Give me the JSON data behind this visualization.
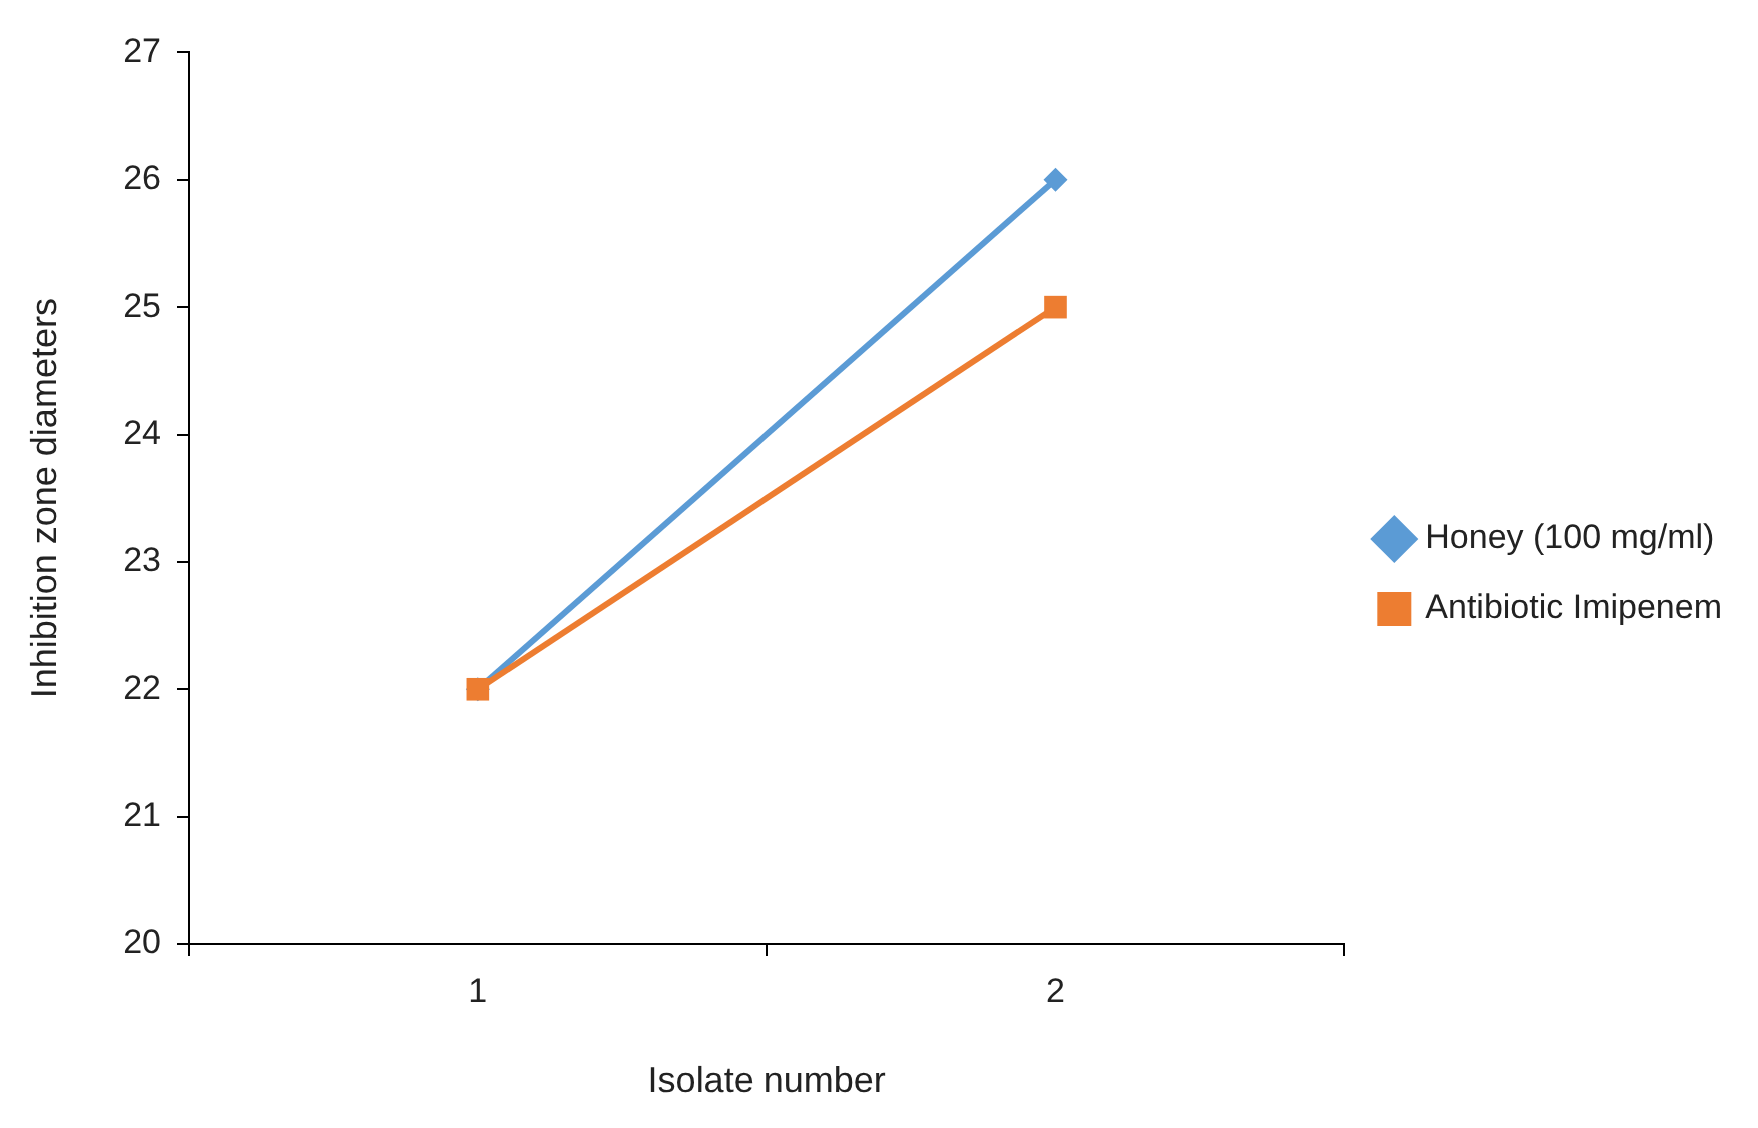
{
  "chart_data": {
    "type": "line",
    "xlabel": "Isolate number",
    "ylabel": "Inhibition zone diameters",
    "categories": [
      "1",
      "2"
    ],
    "series": [
      {
        "name": "Honey (100 mg/ml)",
        "color": "#5b9bd5",
        "values": [
          22,
          26
        ],
        "marker": "diamond"
      },
      {
        "name": "Antibiotic Imipenem",
        "color": "#ed7d31",
        "values": [
          22,
          25
        ],
        "marker": "square"
      }
    ],
    "ylim": [
      20,
      27
    ],
    "yticks": [
      20,
      21,
      22,
      23,
      24,
      25,
      26,
      27
    ],
    "grid": false,
    "legend": "right",
    "line_style": "solid"
  }
}
